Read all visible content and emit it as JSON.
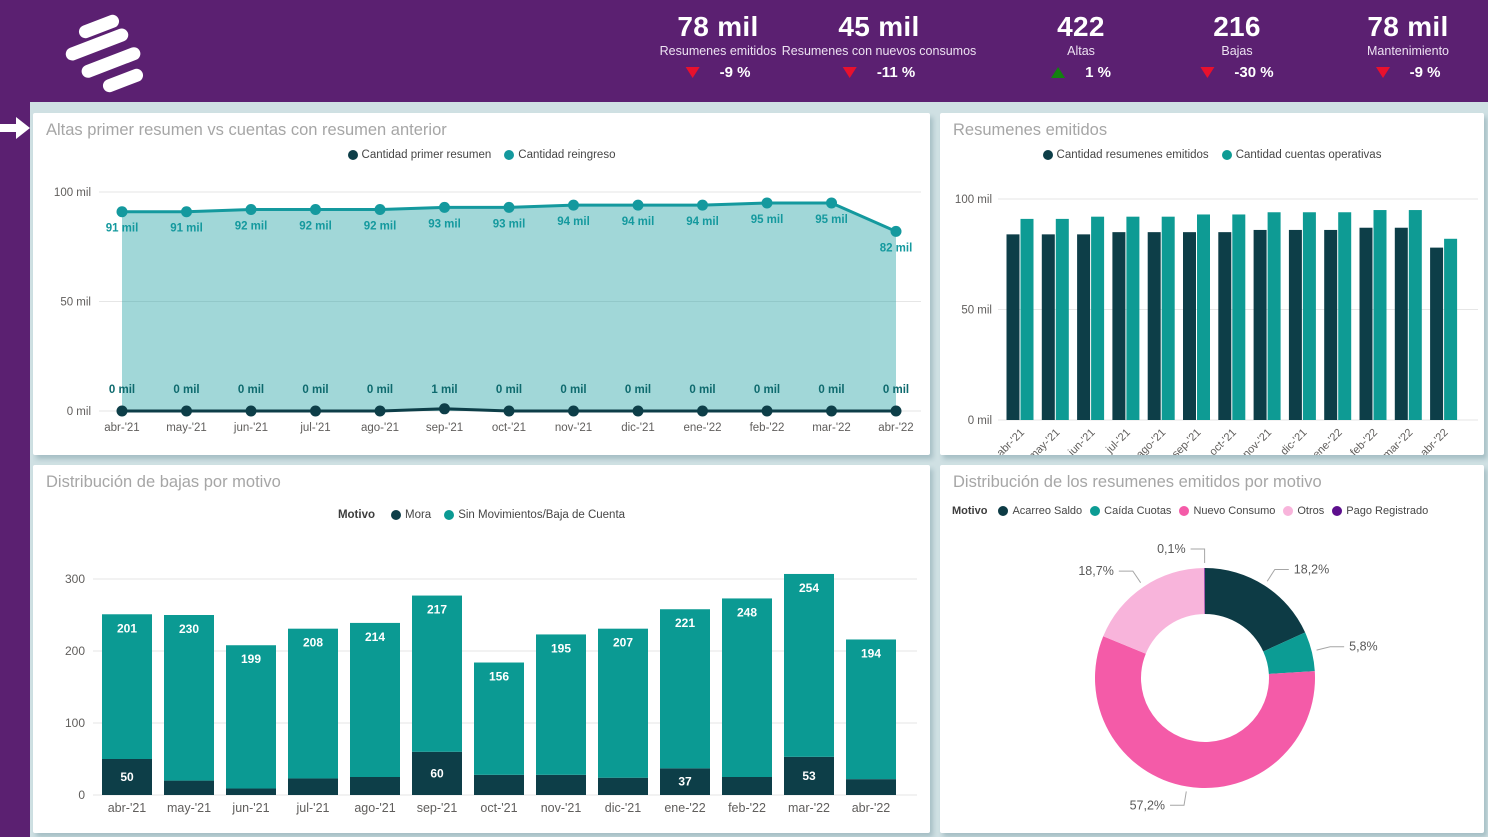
{
  "header": {
    "bg_color": "#5B2071",
    "logo": "brand-logo",
    "delta_up_color": "#12810F",
    "delta_down_color": "#E8112D",
    "kpis": [
      {
        "value": "78 mil",
        "label": "Resumenes emitidos",
        "delta": "-9 %",
        "direction": "down"
      },
      {
        "value": "45 mil",
        "label": "Resumenes con nuevos consumos",
        "delta": "-11 %",
        "direction": "down"
      },
      {
        "value": "422",
        "label": "Altas",
        "delta": "1 %",
        "direction": "up"
      },
      {
        "value": "216",
        "label": "Bajas",
        "delta": "-30 %",
        "direction": "down"
      },
      {
        "value": "78 mil",
        "label": "Mantenimiento",
        "delta": "-9 %",
        "direction": "down"
      }
    ]
  },
  "chart_data": [
    {
      "id": "altas",
      "type": "area",
      "title": "Altas primer resumen vs cuentas con resumen anterior",
      "categories": [
        "abr-'21",
        "may-'21",
        "jun-'21",
        "jul-'21",
        "ago-'21",
        "sep-'21",
        "oct-'21",
        "nov-'21",
        "dic-'21",
        "ene-'22",
        "feb-'22",
        "mar-'22",
        "abr-'22"
      ],
      "series": [
        {
          "name": "Cantidad primer resumen",
          "color": "#0D3E48",
          "label_color": "#0E6A6E",
          "values": [
            0,
            0,
            0,
            0,
            0,
            1,
            0,
            0,
            0,
            0,
            0,
            0,
            0
          ],
          "labels": [
            "0 mil",
            "0 mil",
            "0 mil",
            "0 mil",
            "0 mil",
            "1 mil",
            "0 mil",
            "0 mil",
            "0 mil",
            "0 mil",
            "0 mil",
            "0 mil",
            "0 mil"
          ]
        },
        {
          "name": "Cantidad reingreso",
          "color": "#14999E",
          "label_color": "#14999E",
          "fill": "rgba(19,154,158,0.40)",
          "values": [
            91,
            91,
            92,
            92,
            92,
            93,
            93,
            94,
            94,
            94,
            95,
            95,
            82
          ],
          "labels": [
            "91 mil",
            "91 mil",
            "92 mil",
            "92 mil",
            "92 mil",
            "93 mil",
            "93 mil",
            "94 mil",
            "94 mil",
            "94 mil",
            "95 mil",
            "95 mil",
            "82 mil"
          ]
        }
      ],
      "ylim": [
        0,
        100
      ],
      "yticks": [
        {
          "v": 100,
          "label": "100 mil"
        },
        {
          "v": 50,
          "label": "50 mil"
        },
        {
          "v": 0,
          "label": "0 mil"
        }
      ]
    },
    {
      "id": "resumenes",
      "type": "bar",
      "title": "Resumenes emitidos",
      "categories": [
        "abr-'21",
        "may-'21",
        "jun-'21",
        "jul-'21",
        "ago-'21",
        "sep-'21",
        "oct-'21",
        "nov-'21",
        "dic-'21",
        "ene-'22",
        "feb-'22",
        "mar-'22",
        "abr-'22"
      ],
      "series": [
        {
          "name": "Cantidad resumenes emitidos",
          "color": "#0D3E48",
          "values": [
            84,
            84,
            84,
            85,
            85,
            85,
            85,
            86,
            86,
            86,
            87,
            87,
            78
          ]
        },
        {
          "name": "Cantidad cuentas operativas",
          "color": "#0E9B94",
          "values": [
            91,
            91,
            92,
            92,
            92,
            93,
            93,
            94,
            94,
            94,
            95,
            95,
            82
          ]
        }
      ],
      "ylim": [
        0,
        100
      ],
      "yticks": [
        {
          "v": 100,
          "label": "100 mil"
        },
        {
          "v": 50,
          "label": "50 mil"
        },
        {
          "v": 0,
          "label": "0 mil"
        }
      ]
    },
    {
      "id": "bajas",
      "type": "bar-stacked",
      "title": "Distribución de bajas por motivo",
      "legend_title": "Motivo",
      "categories": [
        "abr-'21",
        "may-'21",
        "jun-'21",
        "jul-'21",
        "ago-'21",
        "sep-'21",
        "oct-'21",
        "nov-'21",
        "dic-'21",
        "ene-'22",
        "feb-'22",
        "mar-'22",
        "abr-'22"
      ],
      "series": [
        {
          "name": "Mora",
          "color": "#0D3E48",
          "values": [
            50,
            20,
            9,
            23,
            25,
            60,
            28,
            28,
            24,
            37,
            25,
            53,
            22
          ],
          "labels": [
            "50",
            null,
            null,
            null,
            null,
            "60",
            null,
            null,
            null,
            "37",
            null,
            "53",
            null
          ]
        },
        {
          "name": "Sin Movimientos/Baja de Cuenta",
          "color": "#0B9A93",
          "values": [
            201,
            230,
            199,
            208,
            214,
            217,
            156,
            195,
            207,
            221,
            248,
            254,
            194
          ],
          "labels": [
            "201",
            "230",
            "199",
            "208",
            "214",
            "217",
            "156",
            "195",
            "207",
            "221",
            "248",
            "254",
            "194"
          ]
        }
      ],
      "ylim": [
        0,
        300
      ],
      "yticks": [
        {
          "v": 300,
          "label": "300"
        },
        {
          "v": 200,
          "label": "200"
        },
        {
          "v": 100,
          "label": "100"
        },
        {
          "v": 0,
          "label": "0"
        }
      ]
    },
    {
      "id": "motivo",
      "type": "pie",
      "title": "Distribución de los resumenes emitidos por motivo",
      "legend_title": "Motivo",
      "slices": [
        {
          "name": "Acarreo Saldo",
          "color": "#0D3B45",
          "pct": 18.2,
          "label": "18,2%"
        },
        {
          "name": "Caída Cuotas",
          "color": "#0C9C94",
          "pct": 5.8,
          "label": "5,8%"
        },
        {
          "name": "Nuevo Consumo",
          "color": "#F45BA8",
          "pct": 57.2,
          "label": "57,2%"
        },
        {
          "name": "Otros",
          "color": "#F8B4DB",
          "pct": 18.7,
          "label": "18,7%"
        },
        {
          "name": "Pago Registrado",
          "color": "#5D0F8D",
          "pct": 0.1,
          "label": "0,1%"
        }
      ]
    }
  ]
}
